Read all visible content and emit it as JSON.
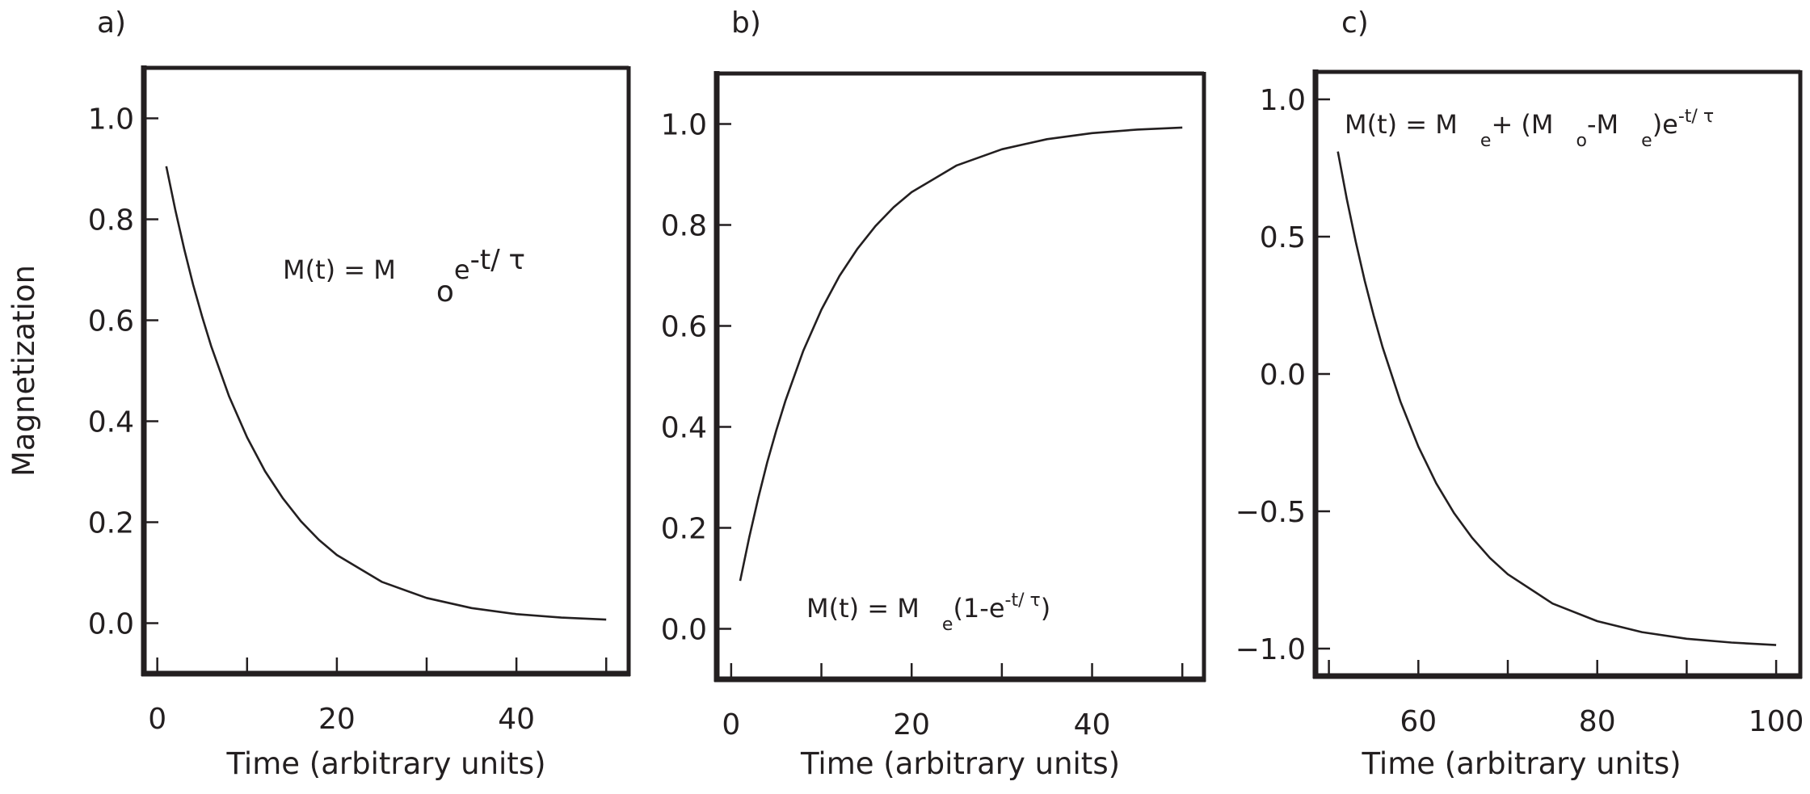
{
  "colors": {
    "ink": "#231f20",
    "background": "#ffffff"
  },
  "chart_data": [
    {
      "type": "line",
      "panel_label": "a)",
      "xlabel": "Time (arbitrary units)",
      "ylabel": "Magnetization",
      "xlim": [
        -1.5,
        52.5
      ],
      "ylim": [
        -0.1,
        1.1
      ],
      "xticks": [
        0,
        10,
        20,
        30,
        40,
        50
      ],
      "xtick_labels": {
        "0": "0",
        "20": "20",
        "40": "40"
      },
      "yticks": [
        0.0,
        0.2,
        0.4,
        0.6,
        0.8,
        1.0
      ],
      "ytick_labels": [
        "0.0",
        "0.2",
        "0.4",
        "0.6",
        "0.8",
        "1.0"
      ],
      "grid": false,
      "annotation": [
        {
          "text": "M(t) = M",
          "style": "normal"
        },
        {
          "text": "o",
          "style": "sub"
        },
        {
          "text": "e",
          "style": "normal"
        },
        {
          "text": "-t/  τ",
          "style": "sup"
        }
      ],
      "x": [
        1,
        2,
        3,
        4,
        5,
        6,
        8,
        10,
        12,
        14,
        16,
        18,
        20,
        25,
        30,
        35,
        40,
        45,
        50
      ],
      "y": [
        0.905,
        0.819,
        0.741,
        0.67,
        0.607,
        0.549,
        0.449,
        0.368,
        0.301,
        0.247,
        0.202,
        0.165,
        0.135,
        0.082,
        0.05,
        0.03,
        0.018,
        0.011,
        0.007
      ]
    },
    {
      "type": "line",
      "panel_label": "b)",
      "xlabel": "Time (arbitrary units)",
      "ylabel": "",
      "xlim": [
        -1.6,
        52.4
      ],
      "ylim": [
        -0.1,
        1.1
      ],
      "xticks": [
        0,
        10,
        20,
        30,
        40,
        50
      ],
      "xtick_labels": {
        "0": "0",
        "20": "20",
        "40": "40"
      },
      "yticks": [
        0.0,
        0.2,
        0.4,
        0.6,
        0.8,
        1.0
      ],
      "ytick_labels": [
        "0.0",
        "0.2",
        "0.4",
        "0.6",
        "0.8",
        "1.0"
      ],
      "grid": false,
      "annotation": [
        {
          "text": "M(t) = M",
          "style": "normal"
        },
        {
          "text": "e",
          "style": "sub"
        },
        {
          "text": "(1-e",
          "style": "normal"
        },
        {
          "text": "-t/  τ",
          "style": "sup"
        },
        {
          "text": ")",
          "style": "normal"
        }
      ],
      "x": [
        1,
        2,
        3,
        4,
        5,
        6,
        8,
        10,
        12,
        14,
        16,
        18,
        20,
        25,
        30,
        35,
        40,
        45,
        50
      ],
      "y": [
        0.095,
        0.181,
        0.259,
        0.33,
        0.393,
        0.451,
        0.551,
        0.632,
        0.699,
        0.753,
        0.798,
        0.835,
        0.865,
        0.918,
        0.95,
        0.97,
        0.982,
        0.989,
        0.993
      ]
    },
    {
      "type": "line",
      "panel_label": "c)",
      "xlabel": "Time (arbitrary units)",
      "ylabel": "",
      "xlim": [
        48.5,
        102.7
      ],
      "ylim": [
        -1.1,
        1.1
      ],
      "xticks": [
        50,
        60,
        70,
        80,
        90,
        100
      ],
      "xtick_labels": {
        "60": "60",
        "80": "80",
        "100": "100"
      },
      "yticks": [
        -1.0,
        -0.5,
        0.0,
        0.5,
        1.0
      ],
      "ytick_labels": [
        "−1.0",
        "−0.5",
        "0.0",
        "0.5",
        "1.0"
      ],
      "grid": false,
      "annotation": [
        {
          "text": "M(t) = M",
          "style": "normal"
        },
        {
          "text": "e",
          "style": "sub"
        },
        {
          "text": "+ (M",
          "style": "normal"
        },
        {
          "text": "o",
          "style": "sub"
        },
        {
          "text": "-M",
          "style": "normal"
        },
        {
          "text": "e",
          "style": "sub"
        },
        {
          "text": ")e",
          "style": "normal"
        },
        {
          "text": "-t/ τ",
          "style": "sup"
        }
      ],
      "x": [
        51,
        52,
        53,
        54,
        55,
        56,
        58,
        60,
        62,
        64,
        66,
        68,
        70,
        75,
        80,
        85,
        90,
        95,
        100
      ],
      "y": [
        0.81,
        0.638,
        0.482,
        0.34,
        0.213,
        0.098,
        -0.101,
        -0.264,
        -0.398,
        -0.507,
        -0.596,
        -0.67,
        -0.729,
        -0.836,
        -0.9,
        -0.94,
        -0.964,
        -0.978,
        -0.987
      ]
    }
  ]
}
